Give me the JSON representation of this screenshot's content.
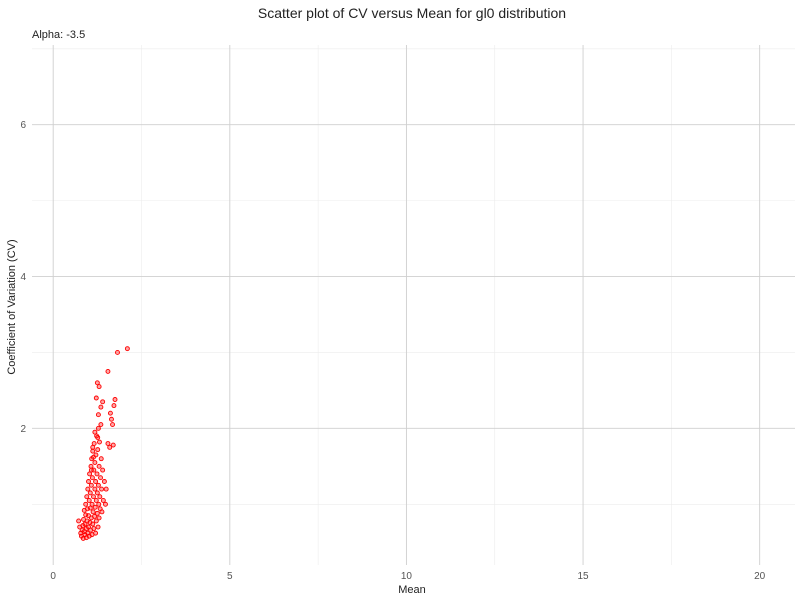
{
  "chart_data": {
    "type": "scatter",
    "title": "Scatter plot of CV versus Mean for gl0 distribution",
    "subtitle": "Alpha: -3.5",
    "xlabel": "Mean",
    "ylabel": "Coefficient of Variation (CV)",
    "xlim": [
      -0.6,
      21.0
    ],
    "ylim": [
      0.2,
      7.05
    ],
    "x_ticks": [
      0,
      5,
      10,
      15,
      20
    ],
    "y_ticks": [
      2,
      4,
      6
    ],
    "grid": true,
    "point_color": "#ff0000",
    "series": [
      {
        "points": [
          [
            0.72,
            0.78
          ],
          [
            0.75,
            0.7
          ],
          [
            0.78,
            0.62
          ],
          [
            0.8,
            0.58
          ],
          [
            0.82,
            0.66
          ],
          [
            0.84,
            0.72
          ],
          [
            0.85,
            0.55
          ],
          [
            0.86,
            0.8
          ],
          [
            0.88,
            0.64
          ],
          [
            0.88,
            0.92
          ],
          [
            0.9,
            0.6
          ],
          [
            0.9,
            0.74
          ],
          [
            0.92,
            0.86
          ],
          [
            0.92,
            1.0
          ],
          [
            0.94,
            0.68
          ],
          [
            0.94,
            0.56
          ],
          [
            0.95,
            1.1
          ],
          [
            0.96,
            0.78
          ],
          [
            0.97,
            0.94
          ],
          [
            0.98,
            0.62
          ],
          [
            0.98,
            1.2
          ],
          [
            1.0,
            0.7
          ],
          [
            1.0,
            0.85
          ],
          [
            1.0,
            1.3
          ],
          [
            1.02,
            0.58
          ],
          [
            1.02,
            1.05
          ],
          [
            1.03,
            1.4
          ],
          [
            1.04,
            0.76
          ],
          [
            1.05,
            0.95
          ],
          [
            1.05,
            1.15
          ],
          [
            1.06,
            0.66
          ],
          [
            1.07,
            1.5
          ],
          [
            1.08,
            0.82
          ],
          [
            1.08,
            1.25
          ],
          [
            1.09,
            1.6
          ],
          [
            1.1,
            0.6
          ],
          [
            1.1,
            1.0
          ],
          [
            1.11,
            1.35
          ],
          [
            1.12,
            0.74
          ],
          [
            1.12,
            1.7
          ],
          [
            1.13,
            0.9
          ],
          [
            1.14,
            1.1
          ],
          [
            1.15,
            1.45
          ],
          [
            1.15,
            0.68
          ],
          [
            1.16,
            1.8
          ],
          [
            1.17,
            0.84
          ],
          [
            1.18,
            1.2
          ],
          [
            1.18,
            1.55
          ],
          [
            1.19,
            0.96
          ],
          [
            1.2,
            0.62
          ],
          [
            1.2,
            1.3
          ],
          [
            1.21,
            1.65
          ],
          [
            1.22,
            0.78
          ],
          [
            1.22,
            1.05
          ],
          [
            1.23,
            1.9
          ],
          [
            1.24,
            1.4
          ],
          [
            1.25,
            0.88
          ],
          [
            1.25,
            1.15
          ],
          [
            1.26,
            1.72
          ],
          [
            1.27,
            0.7
          ],
          [
            1.28,
            1.25
          ],
          [
            1.28,
            2.0
          ],
          [
            1.29,
            1.0
          ],
          [
            1.3,
            1.5
          ],
          [
            1.3,
            0.82
          ],
          [
            1.31,
            1.82
          ],
          [
            1.32,
            1.1
          ],
          [
            1.33,
            0.94
          ],
          [
            1.34,
            1.35
          ],
          [
            1.35,
            2.05
          ],
          [
            1.36,
            1.6
          ],
          [
            1.37,
            1.2
          ],
          [
            1.38,
            0.9
          ],
          [
            1.4,
            1.45
          ],
          [
            1.42,
            1.05
          ],
          [
            1.45,
            1.3
          ],
          [
            1.48,
            1.0
          ],
          [
            1.5,
            1.2
          ],
          [
            1.22,
            2.4
          ],
          [
            1.25,
            2.6
          ],
          [
            1.28,
            2.18
          ],
          [
            1.3,
            2.55
          ],
          [
            1.35,
            2.28
          ],
          [
            1.4,
            2.35
          ],
          [
            1.55,
            1.8
          ],
          [
            1.6,
            1.75
          ],
          [
            1.62,
            2.2
          ],
          [
            1.65,
            2.12
          ],
          [
            1.68,
            2.05
          ],
          [
            1.7,
            1.78
          ],
          [
            1.72,
            2.3
          ],
          [
            1.75,
            2.38
          ],
          [
            1.55,
            2.75
          ],
          [
            1.82,
            3.0
          ],
          [
            2.1,
            3.05
          ],
          [
            1.12,
            1.75
          ],
          [
            1.18,
            1.95
          ],
          [
            1.26,
            1.88
          ],
          [
            1.08,
            1.45
          ],
          [
            1.14,
            1.62
          ]
        ]
      }
    ]
  }
}
